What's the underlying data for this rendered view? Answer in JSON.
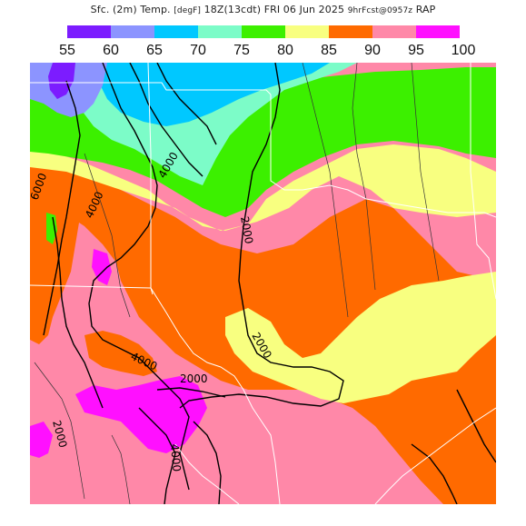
{
  "header": {
    "field": "Sfc. (2m) Temp.",
    "units": "[degF]",
    "valid": "18Z(13cdt) FRI 06 Jun 2025",
    "forecast": "9hrFcst@0957z",
    "model": "RAP"
  },
  "legend": {
    "labels": [
      "55",
      "60",
      "65",
      "70",
      "75",
      "80",
      "85",
      "90",
      "95",
      "100"
    ],
    "colors": [
      "#7c1cff",
      "#8c94ff",
      "#00c8ff",
      "#7cfcc8",
      "#3cf000",
      "#f8ff80",
      "#ff6a00",
      "#ff88a8",
      "#ff10ff"
    ]
  },
  "map": {
    "contour_labels": [
      "6000",
      "4000",
      "4000",
      "2000",
      "2000",
      "2000",
      "4000",
      "4000",
      "2000"
    ]
  }
}
